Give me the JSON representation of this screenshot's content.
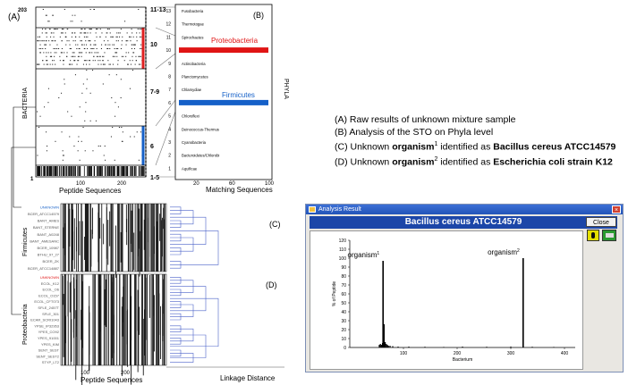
{
  "panel_labels": {
    "a": "(A)",
    "b": "(B)",
    "c": "(C)",
    "d": "(D)"
  },
  "panel_a": {
    "ylabel": "BACTERIA",
    "xlabel": "Peptide Sequences",
    "top_y": "203",
    "bottom_y": "1",
    "xticks": [
      "100",
      "200"
    ],
    "markers": [
      "11-13",
      "10",
      "7-9",
      "6",
      "1-5"
    ]
  },
  "panel_b": {
    "xlabel": "Matching Sequences",
    "ylabel": "PHYLA",
    "proteobacteria_label": "Proteobacteria",
    "firmicutes_label": "Firmicutes"
  },
  "panel_cd": {
    "firmicutes_label": "Firmicutes",
    "proteobacteria_label": "Proteobacteria",
    "xlabel_left": "Peptide Sequences",
    "xlabel_right": "Linkage Distance",
    "xticks": [
      "100",
      "200"
    ],
    "firmicutes_rows": [
      "UNKNOWN",
      "BCER_ATCC14579",
      "BANT_AMES",
      "BANT_STERNE",
      "BANT_A0248",
      "BANT_AMESANC",
      "BCER_10987",
      "BTHU_97_27",
      "BCER_ZK",
      "BCER_ATCC14887"
    ],
    "proteobacteria_rows": [
      "UNKNOWN",
      "ECOL_K12",
      "ECOL_O6",
      "ECOL_O157",
      "ECOL_CFT073",
      "SFLE_2457T",
      "SFLE_301",
      "ECAR_SCRI1043",
      "YPSE_IP32953",
      "YPES_CO92",
      "YPES_91001",
      "YPES_KIM",
      "SENT_SEST",
      "SENT_SEST2",
      "STYP_LT2"
    ]
  },
  "legend": {
    "a": "(A) Raw results of unknown mixture sample",
    "b": "(B) Analysis of the STO on Phyla level",
    "c_prefix": "(C) Unknown ",
    "c_bold": "organism",
    "c_sup": "1",
    "c_mid": " identified as ",
    "c_target": "Bacillus cereus ATCC14579",
    "d_prefix": "(D) Unknown ",
    "d_bold": "organism",
    "d_sup": "2",
    "d_mid": " identified as ",
    "d_target": "Escherichia coli strain K12"
  },
  "window": {
    "title": "Analysis Result",
    "heading": "Bacillus cereus ATCC14579",
    "close_button": "Close",
    "close_x": "×"
  },
  "chart_data": [
    {
      "type": "bar",
      "title": "",
      "xlabel": "Matching Sequences",
      "ylabel": "PHYLA",
      "xlim": [
        0,
        100
      ],
      "xticks": [
        20,
        60,
        100
      ],
      "yticks": [
        1,
        2,
        3,
        4,
        5,
        6,
        7,
        8,
        9,
        10,
        11,
        12,
        13
      ],
      "categories": [
        "Aquificae",
        "Bacteroidetes/Chlorobi",
        "Cyanobacteria",
        "Deinococcus-Thermus",
        "Chloroflexi",
        "Firmicutes",
        "Chlamydiae",
        "Planctomycetes",
        "Actinobacteria",
        "Proteobacteria",
        "Spirochaetes",
        "Thermotogae",
        "Fusobacteria"
      ],
      "values": [
        0,
        0,
        0,
        0,
        0,
        100,
        0,
        0,
        0,
        100,
        0,
        0,
        0
      ],
      "highlight_colors": {
        "Proteobacteria": "#e01515",
        "Firmicutes": "#1560c8"
      }
    },
    {
      "type": "bar",
      "title": "Bacillus cereus ATCC14579",
      "xlabel": "Bacterium",
      "ylabel": "% of Peptide",
      "xlim": [
        0,
        420
      ],
      "ylim": [
        0,
        120
      ],
      "xticks": [
        100,
        200,
        300,
        400
      ],
      "yticks": [
        0,
        10,
        20,
        30,
        40,
        50,
        60,
        70,
        80,
        90,
        100,
        110,
        120
      ],
      "peaks": [
        {
          "x": 62,
          "value": 97,
          "label": "organism",
          "sup": "1"
        },
        {
          "x": 323,
          "value": 100,
          "label": "organism",
          "sup": "2"
        }
      ],
      "minor_bars": [
        {
          "x": 55,
          "value": 3
        },
        {
          "x": 57,
          "value": 4
        },
        {
          "x": 59,
          "value": 3
        },
        {
          "x": 61,
          "value": 5
        },
        {
          "x": 64,
          "value": 26
        },
        {
          "x": 66,
          "value": 6
        },
        {
          "x": 68,
          "value": 4
        },
        {
          "x": 70,
          "value": 3
        },
        {
          "x": 72,
          "value": 2
        },
        {
          "x": 75,
          "value": 2
        },
        {
          "x": 80,
          "value": 1.5
        },
        {
          "x": 90,
          "value": 1
        },
        {
          "x": 110,
          "value": 1
        },
        {
          "x": 140,
          "value": 0.8
        },
        {
          "x": 175,
          "value": 0.6
        },
        {
          "x": 210,
          "value": 1
        },
        {
          "x": 255,
          "value": 0.8
        },
        {
          "x": 300,
          "value": 1
        },
        {
          "x": 340,
          "value": 0.8
        },
        {
          "x": 380,
          "value": 0.6
        }
      ]
    }
  ]
}
